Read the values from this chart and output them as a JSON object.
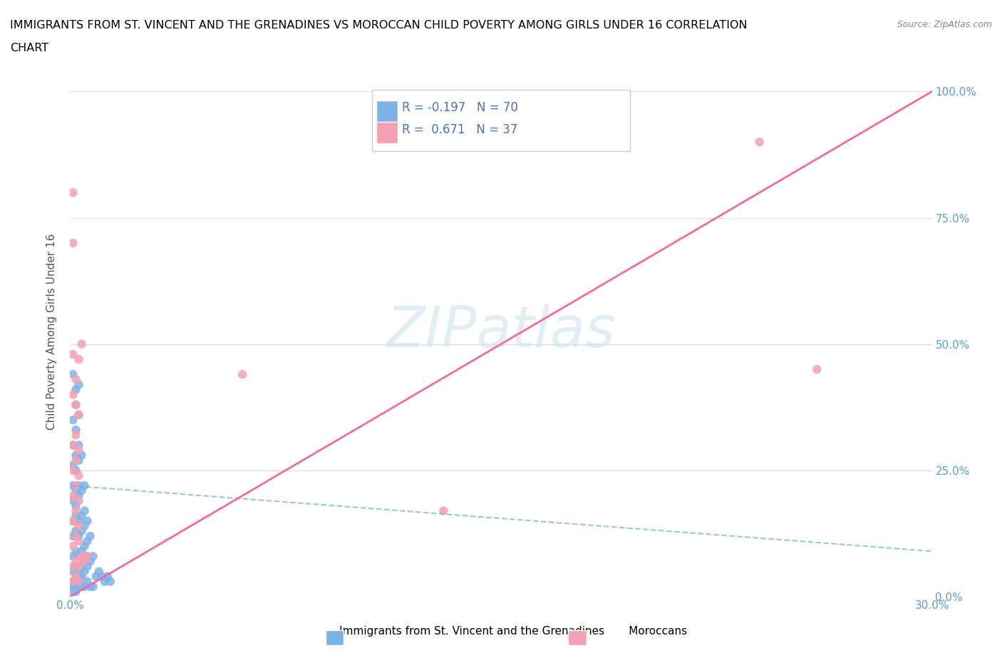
{
  "title_line1": "IMMIGRANTS FROM ST. VINCENT AND THE GRENADINES VS MOROCCAN CHILD POVERTY AMONG GIRLS UNDER 16 CORRELATION",
  "title_line2": "CHART",
  "source": "Source: ZipAtlas.com",
  "ylabel": "Child Poverty Among Girls Under 16",
  "xmin": 0.0,
  "xmax": 0.3,
  "ymin": 0.0,
  "ymax": 1.05,
  "yticks": [
    0.0,
    0.25,
    0.5,
    0.75,
    1.0
  ],
  "ytick_labels": [
    "0.0%",
    "25.0%",
    "50.0%",
    "75.0%",
    "100.0%"
  ],
  "xtick_labels": [
    "0.0%",
    "",
    "",
    "",
    "",
    "",
    "",
    "",
    "",
    "30.0%"
  ],
  "blue_R": -0.197,
  "blue_N": 70,
  "pink_R": 0.671,
  "pink_N": 37,
  "blue_color": "#7eb3e8",
  "pink_color": "#f5a0b0",
  "blue_line_color": "#6baed6",
  "pink_line_color": "#f768a1",
  "blue_scatter": [
    [
      0.001,
      0.44
    ],
    [
      0.002,
      0.38
    ],
    [
      0.002,
      0.41
    ],
    [
      0.003,
      0.42
    ],
    [
      0.001,
      0.35
    ],
    [
      0.002,
      0.33
    ],
    [
      0.003,
      0.36
    ],
    [
      0.001,
      0.3
    ],
    [
      0.002,
      0.28
    ],
    [
      0.003,
      0.3
    ],
    [
      0.001,
      0.26
    ],
    [
      0.002,
      0.25
    ],
    [
      0.003,
      0.27
    ],
    [
      0.004,
      0.28
    ],
    [
      0.001,
      0.22
    ],
    [
      0.002,
      0.21
    ],
    [
      0.003,
      0.22
    ],
    [
      0.001,
      0.19
    ],
    [
      0.002,
      0.18
    ],
    [
      0.003,
      0.2
    ],
    [
      0.004,
      0.21
    ],
    [
      0.005,
      0.22
    ],
    [
      0.001,
      0.15
    ],
    [
      0.002,
      0.16
    ],
    [
      0.003,
      0.15
    ],
    [
      0.004,
      0.16
    ],
    [
      0.005,
      0.17
    ],
    [
      0.001,
      0.12
    ],
    [
      0.002,
      0.13
    ],
    [
      0.003,
      0.12
    ],
    [
      0.004,
      0.13
    ],
    [
      0.005,
      0.14
    ],
    [
      0.006,
      0.15
    ],
    [
      0.001,
      0.08
    ],
    [
      0.002,
      0.09
    ],
    [
      0.003,
      0.08
    ],
    [
      0.004,
      0.09
    ],
    [
      0.005,
      0.1
    ],
    [
      0.006,
      0.11
    ],
    [
      0.007,
      0.12
    ],
    [
      0.001,
      0.05
    ],
    [
      0.002,
      0.06
    ],
    [
      0.003,
      0.05
    ],
    [
      0.004,
      0.06
    ],
    [
      0.005,
      0.07
    ],
    [
      0.006,
      0.08
    ],
    [
      0.001,
      0.03
    ],
    [
      0.002,
      0.03
    ],
    [
      0.003,
      0.04
    ],
    [
      0.004,
      0.04
    ],
    [
      0.005,
      0.05
    ],
    [
      0.006,
      0.06
    ],
    [
      0.007,
      0.07
    ],
    [
      0.008,
      0.08
    ],
    [
      0.009,
      0.04
    ],
    [
      0.01,
      0.05
    ],
    [
      0.011,
      0.04
    ],
    [
      0.012,
      0.03
    ],
    [
      0.013,
      0.04
    ],
    [
      0.014,
      0.03
    ],
    [
      0.001,
      0.02
    ],
    [
      0.002,
      0.02
    ],
    [
      0.003,
      0.03
    ],
    [
      0.001,
      0.01
    ],
    [
      0.002,
      0.01
    ],
    [
      0.004,
      0.02
    ],
    [
      0.005,
      0.02
    ],
    [
      0.006,
      0.03
    ],
    [
      0.007,
      0.02
    ],
    [
      0.008,
      0.02
    ]
  ],
  "pink_scatter": [
    [
      0.001,
      0.48
    ],
    [
      0.002,
      0.43
    ],
    [
      0.003,
      0.47
    ],
    [
      0.004,
      0.5
    ],
    [
      0.001,
      0.4
    ],
    [
      0.002,
      0.38
    ],
    [
      0.003,
      0.36
    ],
    [
      0.001,
      0.3
    ],
    [
      0.002,
      0.32
    ],
    [
      0.003,
      0.29
    ],
    [
      0.001,
      0.25
    ],
    [
      0.002,
      0.27
    ],
    [
      0.003,
      0.24
    ],
    [
      0.001,
      0.2
    ],
    [
      0.002,
      0.22
    ],
    [
      0.003,
      0.19
    ],
    [
      0.001,
      0.15
    ],
    [
      0.002,
      0.17
    ],
    [
      0.003,
      0.14
    ],
    [
      0.001,
      0.1
    ],
    [
      0.002,
      0.12
    ],
    [
      0.003,
      0.11
    ],
    [
      0.001,
      0.06
    ],
    [
      0.002,
      0.07
    ],
    [
      0.003,
      0.06
    ],
    [
      0.004,
      0.08
    ],
    [
      0.005,
      0.07
    ],
    [
      0.006,
      0.08
    ],
    [
      0.001,
      0.03
    ],
    [
      0.002,
      0.04
    ],
    [
      0.003,
      0.03
    ],
    [
      0.13,
      0.17
    ],
    [
      0.24,
      0.9
    ],
    [
      0.001,
      0.8
    ],
    [
      0.001,
      0.7
    ],
    [
      0.26,
      0.45
    ],
    [
      0.06,
      0.44
    ]
  ],
  "legend_label_blue": "Immigrants from St. Vincent and the Grenadines",
  "legend_label_pink": "Moroccans"
}
